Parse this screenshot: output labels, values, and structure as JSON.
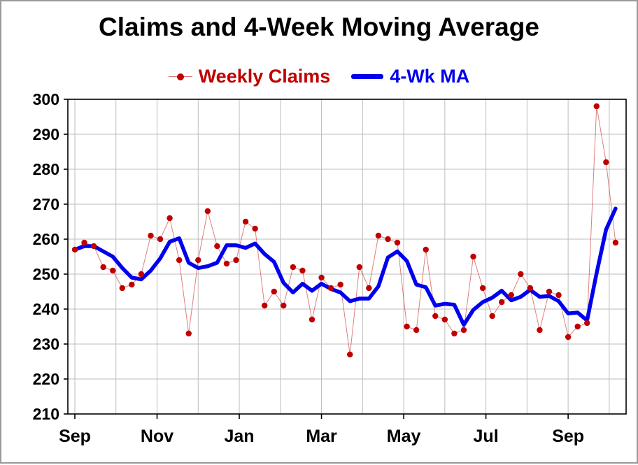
{
  "window": {
    "background": "#ffffff",
    "frame_color": "#9a9a9a"
  },
  "chart_data": {
    "type": "line",
    "title": "Claims and 4-Week Moving Average",
    "xlabel": "",
    "ylabel": "",
    "ylim": [
      210,
      300
    ],
    "y_ticks": [
      210,
      220,
      230,
      240,
      250,
      260,
      270,
      280,
      290,
      300
    ],
    "x_tick_labels": [
      "Sep",
      "Nov",
      "Jan",
      "Mar",
      "May",
      "Jul",
      "Sep"
    ],
    "x_tick_month_positions": [
      0,
      2,
      4,
      6,
      8,
      10,
      12
    ],
    "grid": true,
    "grid_color": "#bdbdbd",
    "legend_position": "top-center",
    "x_unit": "week",
    "series": [
      {
        "name": "Weekly Claims",
        "color": "#C00000",
        "style": "dots-with-thin-line",
        "values": [
          257,
          259,
          258,
          252,
          251,
          246,
          247,
          250,
          261,
          260,
          266,
          254,
          233,
          254,
          268,
          258,
          253,
          254,
          265,
          263,
          241,
          245,
          241,
          252,
          251,
          237,
          249,
          246,
          247,
          227,
          252,
          246,
          261,
          260,
          259,
          235,
          234,
          257,
          238,
          237,
          233,
          234,
          255,
          246,
          238,
          242,
          244,
          250,
          246,
          234,
          245,
          244,
          232,
          235,
          236,
          298,
          282,
          259
        ]
      },
      {
        "name": "4-Wk MA",
        "color": "#0000EE",
        "style": "thick-line",
        "values": [
          257,
          258,
          258,
          256.5,
          255,
          251.75,
          249,
          248.5,
          251,
          254.5,
          259.25,
          260.25,
          253.25,
          251.75,
          252.25,
          253.25,
          258.25,
          258.25,
          257.5,
          258.75,
          255.75,
          253.5,
          247.5,
          244.75,
          247.25,
          245.25,
          247.25,
          245.75,
          244.75,
          242.25,
          243,
          243,
          246.5,
          254.75,
          256.5,
          253.75,
          247,
          246.25,
          241,
          241.5,
          241.25,
          235.5,
          239.75,
          242,
          243.25,
          245.25,
          242.5,
          243.5,
          245.5,
          243.5,
          243.75,
          242.25,
          238.75,
          239,
          236.75,
          250.25,
          262.75,
          268.75
        ]
      }
    ]
  }
}
